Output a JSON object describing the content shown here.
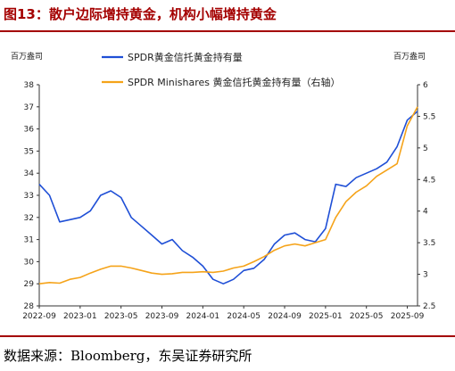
{
  "title": "图13：散户边际增持黄金，机构小幅增持黄金",
  "source": "数据来源：Bloomberg，东吴证券研究所",
  "chart_data": {
    "type": "line",
    "left_unit": "百万盎司",
    "right_unit": "百万盎司",
    "ylim_left": [
      28,
      38
    ],
    "yticks_left": [
      28,
      29,
      30,
      31,
      32,
      33,
      34,
      35,
      36,
      37,
      38
    ],
    "ylim_right": [
      2.5,
      6
    ],
    "yticks_right": [
      "2.5",
      "3",
      "3.5",
      "4",
      "4.5",
      "5",
      "5.5",
      "6"
    ],
    "x_ticks": [
      "2022-09",
      "2023-01",
      "2023-05",
      "2023-09",
      "2024-01",
      "2024-05",
      "2024-09",
      "2025-01",
      "2025-05",
      "2025-09"
    ],
    "x_range": [
      "2022-09",
      "2025-10"
    ],
    "grid": false,
    "legend_position": "top",
    "series": [
      {
        "name": "SPDR黄金信托黄金持有量",
        "axis": "left",
        "color": "#1f4fd6",
        "points": [
          [
            "2022-09",
            33.5
          ],
          [
            "2022-10",
            33.0
          ],
          [
            "2022-11",
            31.8
          ],
          [
            "2022-12",
            31.9
          ],
          [
            "2023-01",
            32.0
          ],
          [
            "2023-02",
            32.3
          ],
          [
            "2023-03",
            33.0
          ],
          [
            "2023-04",
            33.2
          ],
          [
            "2023-05",
            32.9
          ],
          [
            "2023-06",
            32.0
          ],
          [
            "2023-07",
            31.6
          ],
          [
            "2023-08",
            31.2
          ],
          [
            "2023-09",
            30.8
          ],
          [
            "2023-10",
            31.0
          ],
          [
            "2023-11",
            30.5
          ],
          [
            "2023-12",
            30.2
          ],
          [
            "2024-01",
            29.8
          ],
          [
            "2024-02",
            29.2
          ],
          [
            "2024-03",
            29.0
          ],
          [
            "2024-04",
            29.2
          ],
          [
            "2024-05",
            29.6
          ],
          [
            "2024-06",
            29.7
          ],
          [
            "2024-07",
            30.1
          ],
          [
            "2024-08",
            30.8
          ],
          [
            "2024-09",
            31.2
          ],
          [
            "2024-10",
            31.3
          ],
          [
            "2024-11",
            31.0
          ],
          [
            "2024-12",
            30.9
          ],
          [
            "2025-01",
            31.5
          ],
          [
            "2025-02",
            33.5
          ],
          [
            "2025-03",
            33.4
          ],
          [
            "2025-04",
            33.8
          ],
          [
            "2025-05",
            34.0
          ],
          [
            "2025-06",
            34.2
          ],
          [
            "2025-07",
            34.5
          ],
          [
            "2025-08",
            35.2
          ],
          [
            "2025-09",
            36.4
          ],
          [
            "2025-10",
            36.8
          ]
        ]
      },
      {
        "name": "SPDR Minishares 黄金信托黄金持有量（右轴）",
        "axis": "right",
        "color": "#f5a319",
        "points": [
          [
            "2022-09",
            2.85
          ],
          [
            "2022-10",
            2.87
          ],
          [
            "2022-11",
            2.86
          ],
          [
            "2022-12",
            2.92
          ],
          [
            "2023-01",
            2.95
          ],
          [
            "2023-02",
            3.02
          ],
          [
            "2023-03",
            3.08
          ],
          [
            "2023-04",
            3.13
          ],
          [
            "2023-05",
            3.13
          ],
          [
            "2023-06",
            3.1
          ],
          [
            "2023-07",
            3.06
          ],
          [
            "2023-08",
            3.02
          ],
          [
            "2023-09",
            3.0
          ],
          [
            "2023-10",
            3.01
          ],
          [
            "2023-11",
            3.03
          ],
          [
            "2023-12",
            3.03
          ],
          [
            "2024-01",
            3.04
          ],
          [
            "2024-02",
            3.03
          ],
          [
            "2024-03",
            3.05
          ],
          [
            "2024-04",
            3.1
          ],
          [
            "2024-05",
            3.13
          ],
          [
            "2024-06",
            3.2
          ],
          [
            "2024-07",
            3.28
          ],
          [
            "2024-08",
            3.38
          ],
          [
            "2024-09",
            3.45
          ],
          [
            "2024-10",
            3.48
          ],
          [
            "2024-11",
            3.45
          ],
          [
            "2024-12",
            3.5
          ],
          [
            "2025-01",
            3.55
          ],
          [
            "2025-02",
            3.9
          ],
          [
            "2025-03",
            4.15
          ],
          [
            "2025-04",
            4.3
          ],
          [
            "2025-05",
            4.4
          ],
          [
            "2025-06",
            4.55
          ],
          [
            "2025-07",
            4.65
          ],
          [
            "2025-08",
            4.75
          ],
          [
            "2025-09",
            5.35
          ],
          [
            "2025-10",
            5.65
          ]
        ]
      }
    ]
  }
}
